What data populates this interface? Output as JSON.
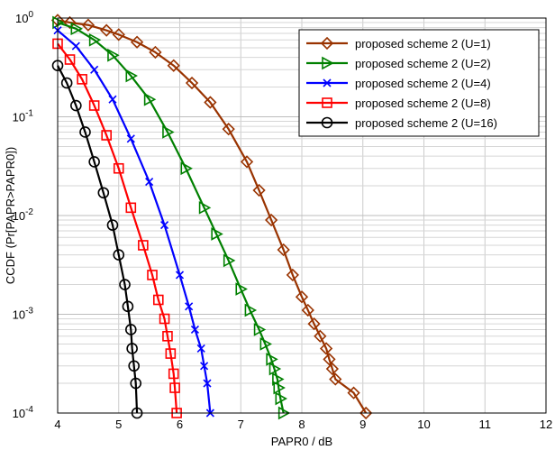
{
  "chart_data": {
    "type": "line",
    "title": "",
    "xlabel": "PAPR0 / dB",
    "ylabel": "CCDF (Pr[PAPR>PAPR0])",
    "xlim": [
      4,
      12
    ],
    "ylim": [
      0.0001,
      1
    ],
    "y_scale": "log",
    "grid": true,
    "legend_position": "top-right",
    "x_ticks": [
      "4",
      "5",
      "6",
      "7",
      "8",
      "9",
      "10",
      "11",
      "12"
    ],
    "y_ticks": [
      {
        "base": "10",
        "exp": "0"
      },
      {
        "base": "10",
        "exp": "-1"
      },
      {
        "base": "10",
        "exp": "-2"
      },
      {
        "base": "10",
        "exp": "-3"
      },
      {
        "base": "10",
        "exp": "-4"
      }
    ],
    "series": [
      {
        "name": "proposed scheme 2 (U=1)",
        "color": "#993300",
        "marker": "diamond",
        "x": [
          4.0,
          4.2,
          4.5,
          4.8,
          5.0,
          5.3,
          5.6,
          5.9,
          6.2,
          6.5,
          6.8,
          7.1,
          7.3,
          7.5,
          7.7,
          7.85,
          8.0,
          8.1,
          8.2,
          8.3,
          8.4,
          8.45,
          8.5,
          8.55,
          8.85,
          9.05
        ],
        "y": [
          0.95,
          0.9,
          0.85,
          0.75,
          0.68,
          0.57,
          0.45,
          0.33,
          0.22,
          0.14,
          0.075,
          0.035,
          0.018,
          0.009,
          0.0045,
          0.0025,
          0.0015,
          0.0011,
          0.0008,
          0.0006,
          0.00045,
          0.00035,
          0.00028,
          0.00022,
          0.00016,
          0.0001
        ]
      },
      {
        "name": "proposed scheme 2 (U=2)",
        "color": "#008000",
        "marker": "triangle-right",
        "x": [
          4.0,
          4.3,
          4.6,
          4.9,
          5.2,
          5.5,
          5.8,
          6.1,
          6.4,
          6.6,
          6.8,
          7.0,
          7.15,
          7.3,
          7.4,
          7.5,
          7.55,
          7.6,
          7.62,
          7.65,
          7.7
        ],
        "y": [
          0.9,
          0.78,
          0.6,
          0.42,
          0.26,
          0.15,
          0.07,
          0.03,
          0.012,
          0.0065,
          0.0035,
          0.0018,
          0.0011,
          0.0007,
          0.0005,
          0.00035,
          0.00028,
          0.00022,
          0.00018,
          0.00014,
          0.0001
        ]
      },
      {
        "name": "proposed scheme 2 (U=4)",
        "color": "#0000ff",
        "marker": "x",
        "x": [
          4.0,
          4.3,
          4.6,
          4.9,
          5.2,
          5.5,
          5.75,
          6.0,
          6.15,
          6.25,
          6.35,
          6.4,
          6.45,
          6.5
        ],
        "y": [
          0.75,
          0.52,
          0.3,
          0.15,
          0.06,
          0.022,
          0.008,
          0.0025,
          0.0012,
          0.0007,
          0.00045,
          0.0003,
          0.0002,
          0.0001
        ]
      },
      {
        "name": "proposed scheme 2 (U=8)",
        "color": "#ff0000",
        "marker": "square",
        "x": [
          4.0,
          4.2,
          4.4,
          4.6,
          4.8,
          5.0,
          5.2,
          5.4,
          5.55,
          5.65,
          5.75,
          5.8,
          5.85,
          5.9,
          5.92,
          5.95
        ],
        "y": [
          0.55,
          0.38,
          0.24,
          0.13,
          0.065,
          0.03,
          0.012,
          0.005,
          0.0025,
          0.0014,
          0.0009,
          0.0006,
          0.0004,
          0.00025,
          0.00018,
          0.0001
        ]
      },
      {
        "name": "proposed scheme 2 (U=16)",
        "color": "#000000",
        "marker": "circle",
        "x": [
          4.0,
          4.15,
          4.3,
          4.45,
          4.6,
          4.75,
          4.9,
          5.0,
          5.1,
          5.15,
          5.2,
          5.22,
          5.25,
          5.28,
          5.3
        ],
        "y": [
          0.33,
          0.22,
          0.13,
          0.07,
          0.035,
          0.017,
          0.008,
          0.004,
          0.002,
          0.0012,
          0.0007,
          0.00045,
          0.0003,
          0.0002,
          0.0001
        ]
      }
    ]
  }
}
